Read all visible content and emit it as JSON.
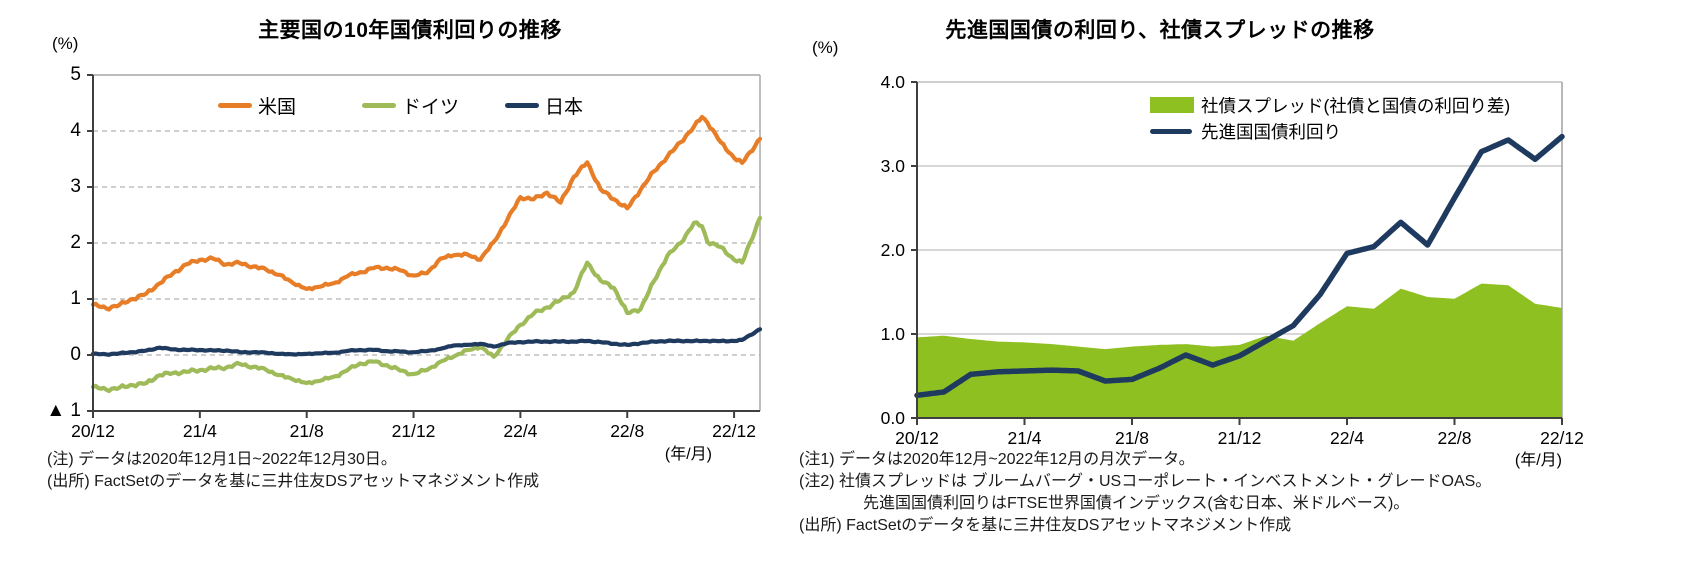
{
  "page": {
    "background": "#ffffff"
  },
  "chart_data": [
    {
      "type": "line",
      "title": "主要国の10年国債利回りの推移",
      "y_unit_label": "(%)",
      "x_axis_unit_label": "(年/月)",
      "grid": "dashed",
      "legend_position": "top-inside",
      "ylim": [
        -1,
        5
      ],
      "xlim_months": [
        0,
        24.97
      ],
      "y_ticks": [
        {
          "value": 5,
          "label": "5"
        },
        {
          "value": 4,
          "label": "4"
        },
        {
          "value": 3,
          "label": "3"
        },
        {
          "value": 2,
          "label": "2"
        },
        {
          "value": 1,
          "label": "1"
        },
        {
          "value": 0,
          "label": "0"
        },
        {
          "value": -1,
          "label": "▲ 1"
        }
      ],
      "x_tick_months": [
        0,
        4,
        8,
        12,
        16,
        20,
        24
      ],
      "x_tick_labels": [
        "20/12",
        "21/4",
        "21/8",
        "21/12",
        "22/4",
        "22/8",
        "22/12"
      ],
      "x_months": [
        0,
        0.5,
        1,
        1.5,
        2,
        2.5,
        3,
        3.5,
        4,
        4.5,
        5,
        5.5,
        6,
        6.5,
        7,
        7.5,
        8,
        8.5,
        9,
        9.5,
        10,
        10.5,
        11,
        11.5,
        12,
        12.5,
        13,
        13.5,
        14,
        14.5,
        15,
        15.5,
        16,
        16.5,
        17,
        17.5,
        18,
        18.5,
        19,
        19.5,
        20,
        20.5,
        21,
        21.5,
        22,
        22.5,
        22.8,
        23,
        23.5,
        24,
        24.3,
        24.97
      ],
      "series": [
        {
          "name": "米国",
          "color": "#e87d28",
          "type": "line",
          "values": [
            0.9,
            0.83,
            0.9,
            1.0,
            1.1,
            1.28,
            1.46,
            1.62,
            1.7,
            1.72,
            1.62,
            1.64,
            1.58,
            1.52,
            1.43,
            1.28,
            1.18,
            1.22,
            1.28,
            1.4,
            1.48,
            1.55,
            1.56,
            1.51,
            1.42,
            1.46,
            1.72,
            1.78,
            1.8,
            1.7,
            2.02,
            2.4,
            2.82,
            2.78,
            2.9,
            2.72,
            3.18,
            3.44,
            2.96,
            2.78,
            2.62,
            2.95,
            3.28,
            3.54,
            3.8,
            4.08,
            4.25,
            4.15,
            3.8,
            3.52,
            3.43,
            3.86
          ]
        },
        {
          "name": "ドイツ",
          "color": "#9fbb59",
          "type": "line",
          "values": [
            -0.57,
            -0.62,
            -0.58,
            -0.54,
            -0.5,
            -0.36,
            -0.32,
            -0.3,
            -0.27,
            -0.24,
            -0.22,
            -0.16,
            -0.21,
            -0.27,
            -0.36,
            -0.44,
            -0.5,
            -0.46,
            -0.39,
            -0.28,
            -0.15,
            -0.12,
            -0.18,
            -0.28,
            -0.34,
            -0.27,
            -0.12,
            -0.03,
            0.09,
            0.14,
            -0.03,
            0.27,
            0.54,
            0.74,
            0.85,
            0.98,
            1.12,
            1.65,
            1.33,
            1.2,
            0.75,
            0.82,
            1.32,
            1.77,
            2.0,
            2.36,
            2.3,
            2.02,
            1.93,
            1.7,
            1.65,
            2.45
          ]
        },
        {
          "name": "日本",
          "color": "#1f3a5f",
          "type": "line",
          "values": [
            0.02,
            0.01,
            0.03,
            0.05,
            0.08,
            0.13,
            0.1,
            0.09,
            0.09,
            0.08,
            0.08,
            0.05,
            0.05,
            0.04,
            0.02,
            0.01,
            0.02,
            0.03,
            0.04,
            0.07,
            0.09,
            0.09,
            0.07,
            0.06,
            0.05,
            0.07,
            0.11,
            0.17,
            0.18,
            0.2,
            0.15,
            0.21,
            0.23,
            0.24,
            0.24,
            0.24,
            0.24,
            0.25,
            0.23,
            0.2,
            0.18,
            0.21,
            0.24,
            0.25,
            0.25,
            0.25,
            0.25,
            0.25,
            0.25,
            0.25,
            0.27,
            0.46
          ]
        }
      ],
      "notes": [
        "(注) データは2020年12月1日~2022年12月30日。",
        "(出所) FactSetのデータを基に三井住友DSアセットマネジメント作成"
      ]
    },
    {
      "type": "area+line",
      "title": "先進国国債の利回り、社債スプレッドの推移",
      "y_unit_label": "(%)",
      "x_axis_unit_label": "(年/月)",
      "grid": "solid",
      "legend_position": "top-inside",
      "ylim": [
        0,
        4
      ],
      "xlim_months": [
        0,
        24
      ],
      "y_ticks": [
        {
          "value": 4,
          "label": "4.0"
        },
        {
          "value": 3,
          "label": "3.0"
        },
        {
          "value": 2,
          "label": "2.0"
        },
        {
          "value": 1,
          "label": "1.0"
        },
        {
          "value": 0,
          "label": "0.0"
        }
      ],
      "x_tick_months": [
        0,
        4,
        8,
        12,
        16,
        20,
        24
      ],
      "x_tick_labels": [
        "20/12",
        "21/4",
        "21/8",
        "21/12",
        "22/4",
        "22/8",
        "22/12"
      ],
      "x_months": [
        0,
        1,
        2,
        3,
        4,
        5,
        6,
        7,
        8,
        9,
        10,
        11,
        12,
        13,
        14,
        15,
        16,
        17,
        18,
        19,
        20,
        21,
        22,
        23,
        24
      ],
      "series": [
        {
          "name": "社債スプレッド(社債と国債の利回り差)",
          "color": "#8fc021",
          "type": "area",
          "values": [
            0.96,
            0.98,
            0.94,
            0.91,
            0.9,
            0.88,
            0.85,
            0.82,
            0.85,
            0.87,
            0.88,
            0.85,
            0.87,
            0.98,
            0.92,
            1.13,
            1.33,
            1.3,
            1.54,
            1.44,
            1.42,
            1.6,
            1.58,
            1.36,
            1.31
          ]
        },
        {
          "name": "先進国国債利回り",
          "color": "#1f3a5f",
          "type": "line",
          "values": [
            0.27,
            0.31,
            0.52,
            0.55,
            0.56,
            0.57,
            0.56,
            0.44,
            0.46,
            0.59,
            0.75,
            0.63,
            0.74,
            0.92,
            1.1,
            1.47,
            1.96,
            2.04,
            2.33,
            2.06,
            2.62,
            3.17,
            3.31,
            3.08,
            3.35
          ]
        }
      ],
      "notes": [
        "(注1) データは2020年12月~2022年12月の月次データ。",
        "(注2) 社債スプレッドは ブルームバーグ・USコーポレート・インベストメント・グレードOAS。",
        "先進国国債利回りはFTSE世界国債インデックス(含む日本、米ドルベース)。",
        "(出所) FactSetのデータを基に三井住友DSアセットマネジメント作成"
      ]
    }
  ]
}
